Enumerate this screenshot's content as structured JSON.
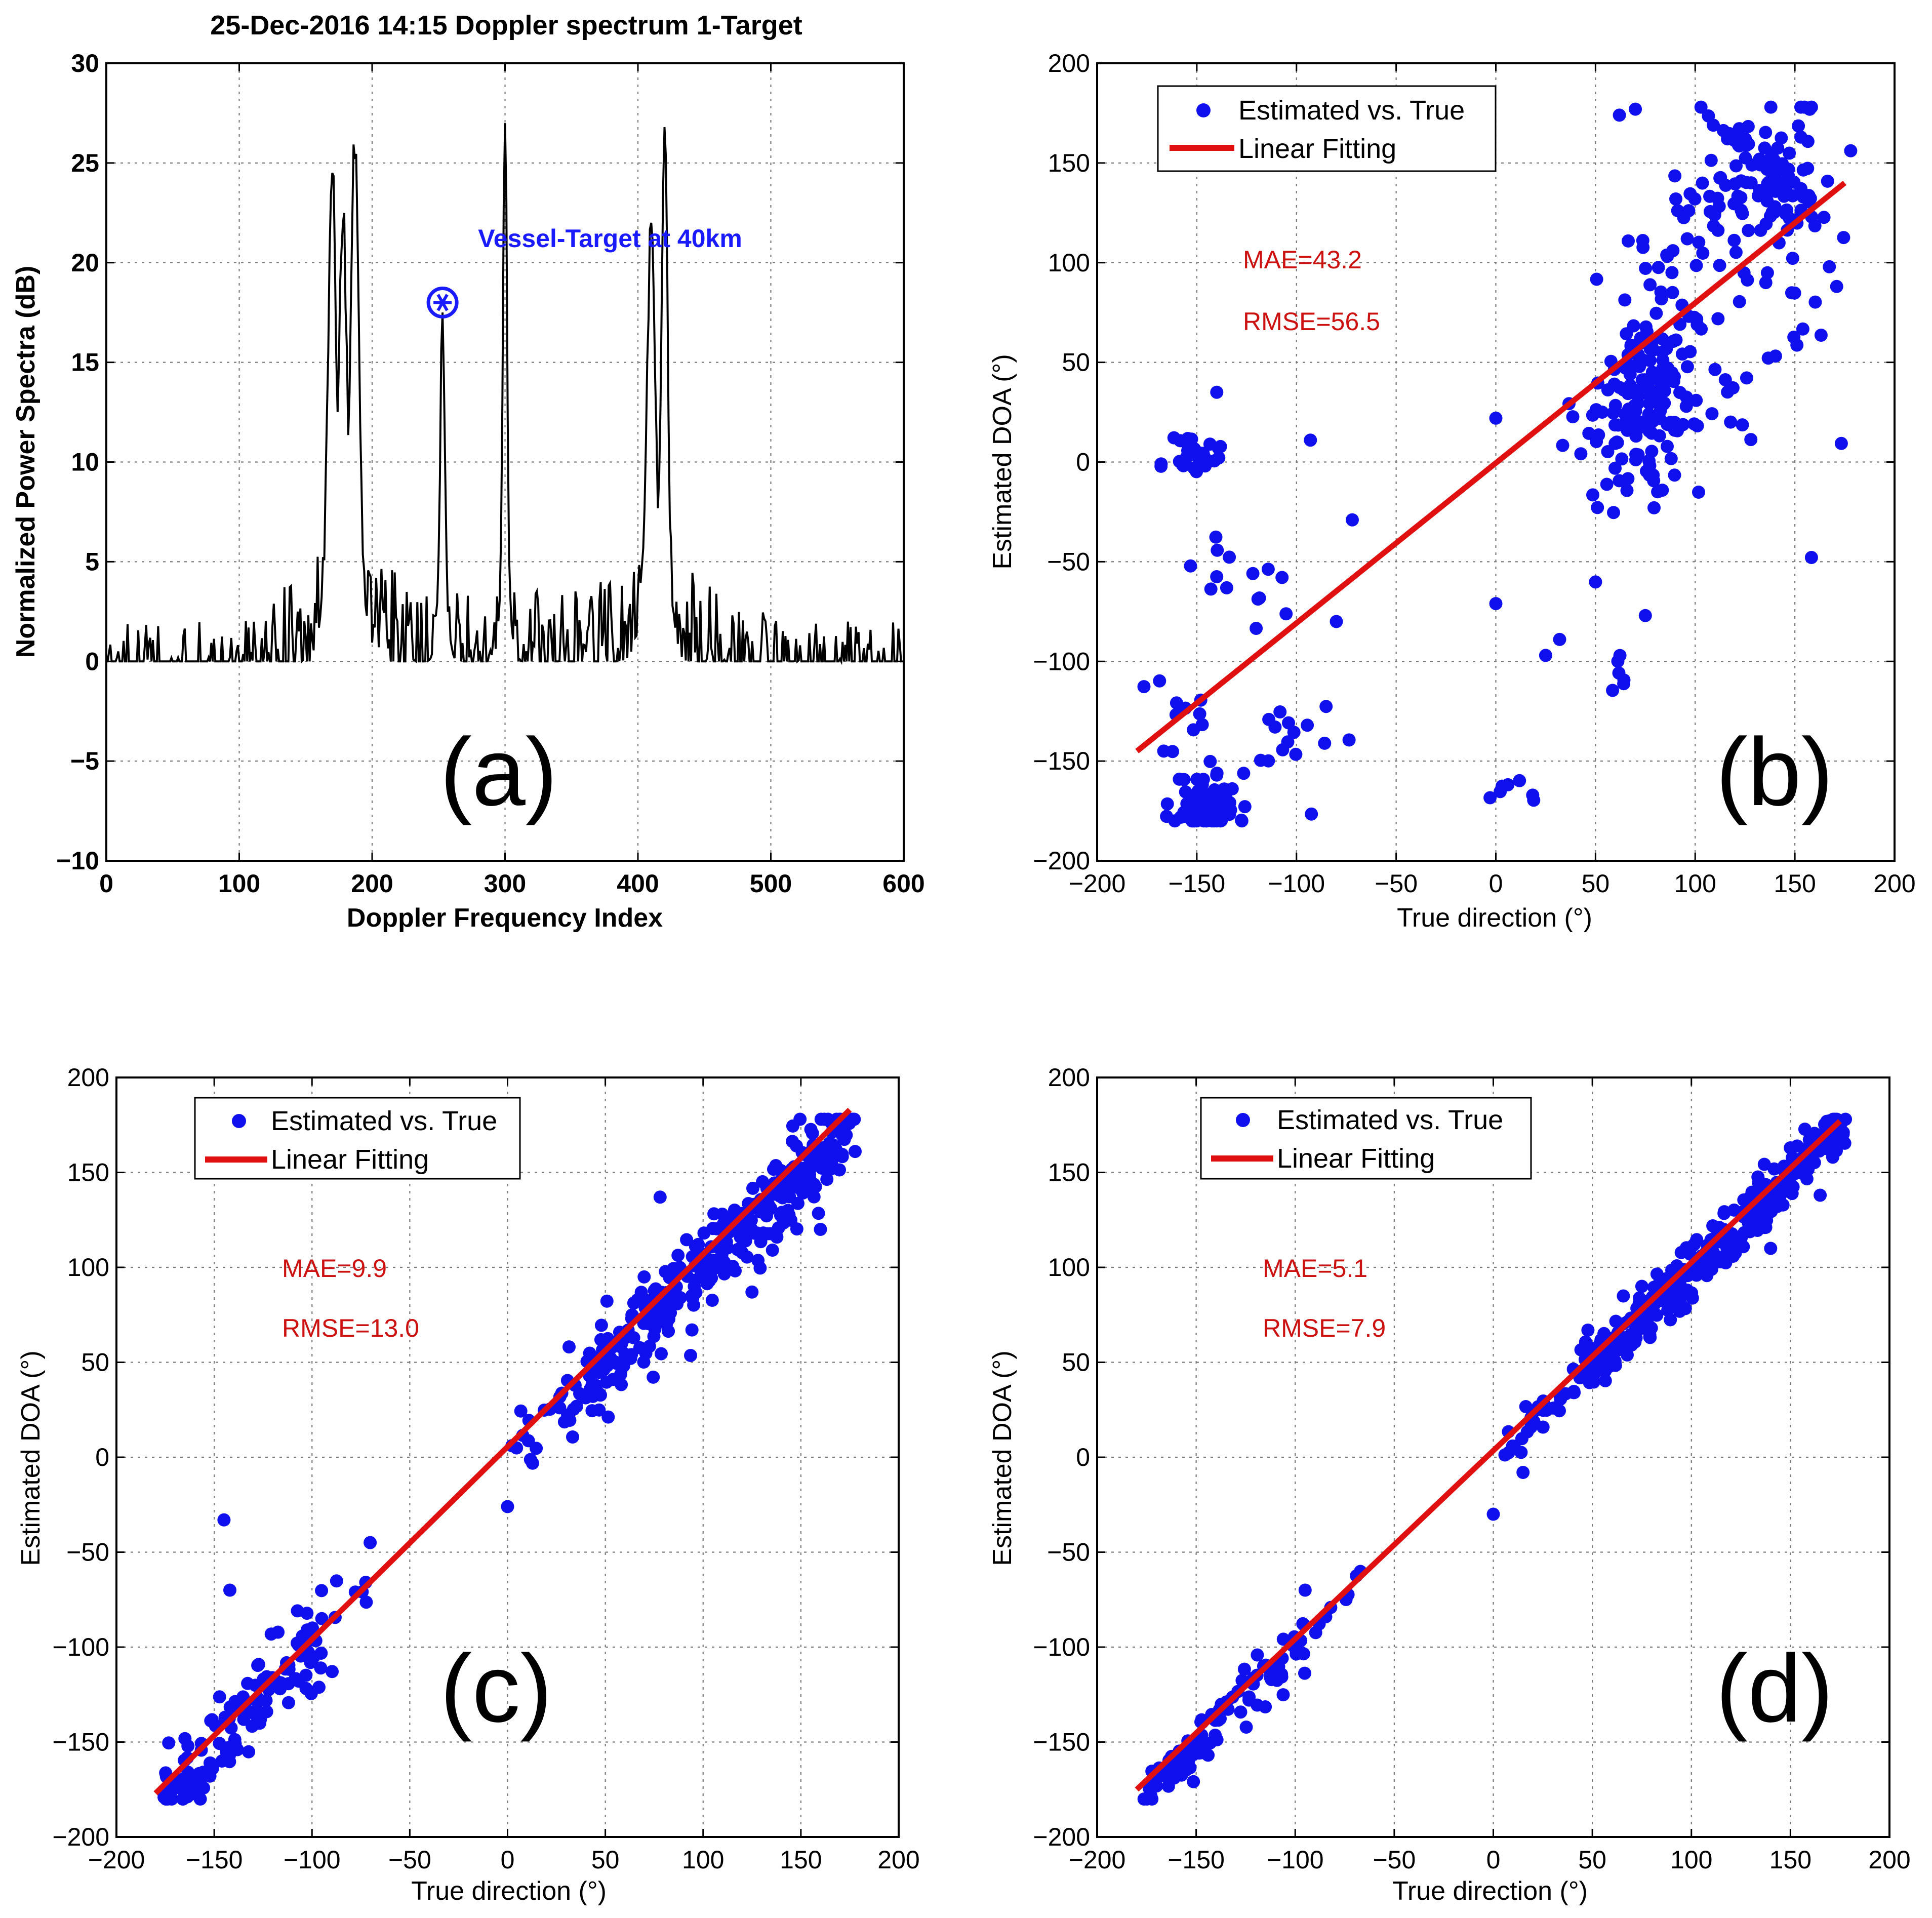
{
  "panels": [
    {
      "id": "a",
      "panel_label": "(a)",
      "title": "25-Dec-2016 14:15  Doppler spectrum 1-Target",
      "annotation": "Vessel-Target at 40km",
      "colors": {
        "line": "#000000",
        "marker": "#1a1aff",
        "annotation": "#1a1aff"
      }
    },
    {
      "id": "b",
      "panel_label": "(b)",
      "legend": {
        "scatter": "Estimated vs. True",
        "line": "Linear Fitting"
      },
      "stats": {
        "mae": "MAE=43.2",
        "rmse": "RMSE=56.5"
      },
      "colors": {
        "scatter": "#1010ee",
        "line": "#e01010",
        "stats": "#cc1111"
      }
    },
    {
      "id": "c",
      "panel_label": "(c)",
      "legend": {
        "scatter": "Estimated vs. True",
        "line": "Linear Fitting"
      },
      "stats": {
        "mae": "MAE=9.9",
        "rmse": "RMSE=13.0"
      },
      "colors": {
        "scatter": "#1010ee",
        "line": "#e01010",
        "stats": "#cc1111"
      }
    },
    {
      "id": "d",
      "panel_label": "(d)",
      "legend": {
        "scatter": "Estimated vs. True",
        "line": "Linear Fitting"
      },
      "stats": {
        "mae": "MAE=5.1",
        "rmse": "RMSE=7.9"
      },
      "colors": {
        "scatter": "#1010ee",
        "line": "#e01010",
        "stats": "#cc1111"
      }
    }
  ],
  "chart_data": [
    {
      "panel": "a",
      "type": "line",
      "title": "25-Dec-2016 14:15  Doppler spectrum 1-Target",
      "xlabel": "Doppler Frequency Index",
      "ylabel": "Normalized Power Spectra (dB)",
      "xlim": [
        0,
        600
      ],
      "ylim": [
        -10,
        30
      ],
      "xticks": [
        0,
        100,
        200,
        300,
        400,
        500,
        600
      ],
      "yticks": [
        -10,
        -5,
        0,
        5,
        10,
        15,
        20,
        25,
        30
      ],
      "xtick_labels": [
        "0",
        "100",
        "200",
        "300",
        "400",
        "500",
        "600"
      ],
      "ytick_labels": [
        "−10",
        "−5",
        "0",
        "5",
        "10",
        "15",
        "20",
        "25",
        "30"
      ],
      "grid": true,
      "series": [
        {
          "name": "Doppler spectrum",
          "generator": "noise_with_peaks",
          "n_points": 600,
          "noise_floor_db": -1.5,
          "noise_amplitude_db": 3.5,
          "peaks": [
            {
              "x": 170,
              "y": 24.5,
              "width": 4
            },
            {
              "x": 178,
              "y": 22.0,
              "width": 4
            },
            {
              "x": 187,
              "y": 25.2,
              "width": 4
            },
            {
              "x": 253,
              "y": 17.5,
              "width": 2
            },
            {
              "x": 300,
              "y": 27.0,
              "width": 2
            },
            {
              "x": 410,
              "y": 22.0,
              "width": 4
            },
            {
              "x": 420,
              "y": 26.8,
              "width": 3
            }
          ]
        }
      ],
      "target_marker": {
        "x": 253,
        "y": 18
      }
    },
    {
      "panel": "b",
      "type": "scatter",
      "xlabel": "True direction (°)",
      "ylabel": "Estimated DOA  (°)",
      "xlim": [
        -200,
        200
      ],
      "ylim": [
        -200,
        200
      ],
      "xticks": [
        -200,
        -150,
        -100,
        -50,
        0,
        50,
        100,
        150,
        200
      ],
      "yticks": [
        -200,
        -150,
        -100,
        -50,
        0,
        50,
        100,
        150,
        200
      ],
      "xtick_labels": [
        "−200",
        "−150",
        "−100",
        "−50",
        "0",
        "50",
        "100",
        "150",
        "200"
      ],
      "ytick_labels": [
        "−200",
        "−150",
        "−100",
        "−50",
        "0",
        "50",
        "100",
        "150",
        "200"
      ],
      "grid": true,
      "legend_position": "top-left",
      "fit_line": {
        "x": [
          -180,
          175
        ],
        "y": [
          -145,
          140
        ]
      },
      "scatter_clusters": [
        {
          "cx": -145,
          "cy": -172,
          "sx": 8,
          "sy": 8,
          "n": 90
        },
        {
          "cx": -150,
          "cy": 3,
          "sx": 8,
          "sy": 6,
          "n": 28
        },
        {
          "cx": -130,
          "cy": -60,
          "sx": 10,
          "sy": 15,
          "n": 14
        },
        {
          "cx": -105,
          "cy": -145,
          "sx": 15,
          "sy": 15,
          "n": 16
        },
        {
          "cx": -155,
          "cy": -120,
          "sx": 12,
          "sy": 15,
          "n": 10
        },
        {
          "cx": 75,
          "cy": 35,
          "sx": 12,
          "sy": 18,
          "n": 130
        },
        {
          "cx": 60,
          "cy": 0,
          "sx": 15,
          "sy": 20,
          "n": 25
        },
        {
          "cx": 135,
          "cy": 140,
          "sx": 18,
          "sy": 22,
          "n": 110
        },
        {
          "cx": 90,
          "cy": 110,
          "sx": 15,
          "sy": 25,
          "n": 30
        },
        {
          "cx": 110,
          "cy": 60,
          "sx": 18,
          "sy": 30,
          "n": 22
        },
        {
          "cx": 10,
          "cy": -165,
          "sx": 6,
          "sy": 5,
          "n": 7
        },
        {
          "cx": 62,
          "cy": -108,
          "sx": 5,
          "sy": 8,
          "n": 6
        },
        {
          "cx": 155,
          "cy": 90,
          "sx": 15,
          "sy": 60,
          "n": 12
        }
      ],
      "scatter_extra": [
        [
          -140,
          35
        ],
        [
          -93,
          11
        ],
        [
          -72,
          -29
        ],
        [
          -80,
          -80
        ],
        [
          0,
          -71
        ],
        [
          25,
          -97
        ],
        [
          32,
          -89
        ],
        [
          75,
          -77
        ],
        [
          0,
          22
        ],
        [
          62,
          174
        ],
        [
          70,
          177
        ]
      ]
    },
    {
      "panel": "c",
      "type": "scatter",
      "xlabel": "True direction (°)",
      "ylabel": "Estimated DOA  (°)",
      "xlim": [
        -200,
        200
      ],
      "ylim": [
        -200,
        200
      ],
      "xticks": [
        -200,
        -150,
        -100,
        -50,
        0,
        50,
        100,
        150,
        200
      ],
      "yticks": [
        -200,
        -150,
        -100,
        -50,
        0,
        50,
        100,
        150,
        200
      ],
      "xtick_labels": [
        "−200",
        "−150",
        "−100",
        "−50",
        "0",
        "50",
        "100",
        "150",
        "200"
      ],
      "ytick_labels": [
        "−200",
        "−150",
        "−100",
        "−50",
        "0",
        "50",
        "100",
        "150",
        "200"
      ],
      "grid": true,
      "legend_position": "top-left",
      "fit_line": {
        "x": [
          -180,
          175
        ],
        "y": [
          -177,
          183
        ]
      },
      "scatter_band": {
        "slope": 1.0,
        "intercept": 0.0,
        "noise": 11,
        "ranges": [
          [
            -178,
            -95,
            130
          ],
          [
            -90,
            -60,
            8
          ],
          [
            0,
            40,
            25
          ],
          [
            40,
            178,
            330
          ]
        ]
      },
      "scatter_extra": [
        [
          -145,
          -33
        ],
        [
          -142,
          -70
        ],
        [
          -95,
          -85
        ],
        [
          0,
          -26
        ],
        [
          78,
          137
        ],
        [
          125,
          87
        ],
        [
          160,
          120
        ]
      ]
    },
    {
      "panel": "d",
      "type": "scatter",
      "xlabel": "True direction (°)",
      "ylabel": "Estimated DOA  (°)",
      "xlim": [
        -200,
        200
      ],
      "ylim": [
        -200,
        200
      ],
      "xticks": [
        -200,
        -150,
        -100,
        -50,
        0,
        50,
        100,
        150,
        200
      ],
      "yticks": [
        -200,
        -150,
        -100,
        -50,
        0,
        50,
        100,
        150,
        200
      ],
      "xtick_labels": [
        "−200",
        "−150",
        "−100",
        "−50",
        "0",
        "50",
        "100",
        "150",
        "200"
      ],
      "ytick_labels": [
        "−200",
        "−150",
        "−100",
        "−50",
        "0",
        "50",
        "100",
        "150",
        "200"
      ],
      "grid": true,
      "legend_position": "top-left",
      "fit_line": {
        "x": [
          -180,
          175
        ],
        "y": [
          -175,
          177
        ]
      },
      "scatter_band": {
        "slope": 1.0,
        "intercept": -2.0,
        "noise": 7,
        "ranges": [
          [
            -178,
            -95,
            110
          ],
          [
            -90,
            -60,
            8
          ],
          [
            0,
            40,
            25
          ],
          [
            40,
            178,
            330
          ]
        ]
      },
      "scatter_extra": [
        [
          -95,
          -70
        ],
        [
          0,
          -30
        ],
        [
          15,
          -8
        ],
        [
          75,
          90
        ],
        [
          140,
          110
        ],
        [
          165,
          138
        ]
      ]
    }
  ]
}
